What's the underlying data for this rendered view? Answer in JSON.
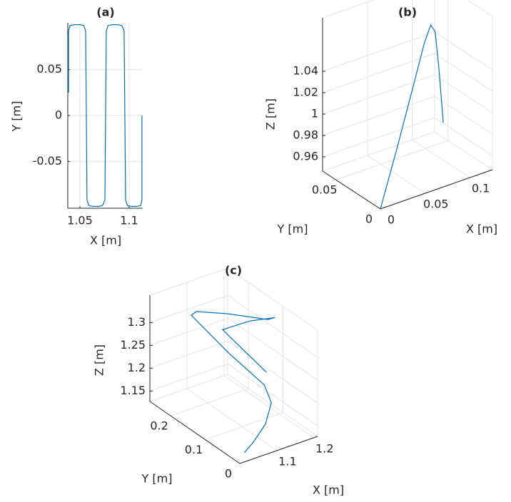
{
  "chart_data": [
    {
      "type": "line",
      "title": "(a)",
      "xlabel": "X [m]",
      "ylabel": "Y [m]",
      "color": "#0072bd",
      "grid": true,
      "xlim": [
        1.0377,
        1.1138
      ],
      "ylim": [
        -0.101,
        0.101
      ],
      "xticks": [
        1.05,
        1.1
      ],
      "yticks": [
        -0.05,
        0,
        0.05
      ],
      "x": [
        1.0384,
        1.0384,
        1.04,
        1.044,
        1.05,
        1.054,
        1.0558,
        1.0572,
        1.059,
        1.063,
        1.069,
        1.073,
        1.0754,
        1.0768,
        1.0786,
        1.0826,
        1.0886,
        1.0926,
        1.0949,
        1.0964,
        1.0982,
        1.1022,
        1.1082,
        1.1118,
        1.113,
        1.113
      ],
      "values": [
        0.025,
        0.092,
        0.098,
        0.099,
        0.099,
        0.098,
        0.092,
        -0.092,
        -0.098,
        -0.099,
        -0.099,
        -0.098,
        -0.092,
        0.092,
        0.098,
        0.099,
        0.099,
        0.098,
        0.092,
        -0.092,
        -0.098,
        -0.099,
        -0.099,
        -0.098,
        -0.092,
        0
      ]
    },
    {
      "type": "line3d",
      "title": "(b)",
      "xlabel": "X [m]",
      "ylabel": "Y [m]",
      "zlabel": "Z [m]",
      "color": "#0072bd",
      "grid": true,
      "xlim": [
        0,
        0.125
      ],
      "ylim": [
        0,
        0.065
      ],
      "zlim": [
        0.9467,
        1.09
      ],
      "xticks": [
        0,
        0.05,
        0.1
      ],
      "yticks": [
        0,
        0.05
      ],
      "zticks": [
        0.96,
        0.98,
        1,
        1.02,
        1.04
      ],
      "x": [
        0,
        0.0225,
        0.045,
        0.063,
        0.072,
        0.0783,
        0.0837,
        0.09
      ],
      "y": [
        0,
        0.005,
        0.01,
        0.014,
        0.016,
        0.0174,
        0.0186,
        0.02
      ],
      "z": [
        0.9467,
        0.991,
        1.038,
        1.076,
        1.0887,
        1.08,
        1.044,
        0.99
      ]
    },
    {
      "type": "line3d",
      "title": "(c)",
      "xlabel": "X [m]",
      "ylabel": "Y [m]",
      "zlabel": "Z [m]",
      "color": "#0072bd",
      "grid": true,
      "xlim": [
        1.0,
        1.21
      ],
      "ylim": [
        0,
        0.26
      ],
      "zlim": [
        1.127,
        1.36
      ],
      "xticks": [
        1.1,
        1.2
      ],
      "yticks": [
        0,
        0.1,
        0.2
      ],
      "zticks": [
        1.15,
        1.2,
        1.25,
        1.3
      ],
      "x": [
        1.181,
        1.129,
        1.087,
        1.173,
        1.204,
        1.197,
        1.115,
        1.053,
        1.039,
        1.091,
        1.151,
        1.158,
        1.118,
        1.061,
        1.024
      ],
      "y": [
        0.117,
        0.13,
        0.143,
        0.156,
        0.117,
        0.13,
        0.156,
        0.182,
        0.182,
        0.13,
        0.091,
        0.078,
        0.052,
        0.026,
        0.013
      ],
      "z": [
        1.215,
        1.273,
        1.321,
        1.309,
        1.328,
        1.319,
        1.341,
        1.35,
        1.346,
        1.276,
        1.209,
        1.175,
        1.153,
        1.143,
        1.137
      ]
    }
  ]
}
